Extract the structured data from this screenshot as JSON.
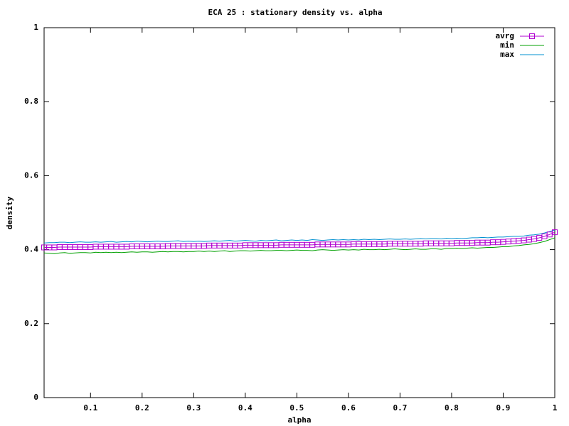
{
  "chart_data": {
    "type": "line",
    "title": "ECA 25 : stationary density vs. alpha",
    "x_label": "alpha",
    "y_label": "density",
    "xlim": [
      0.01,
      1
    ],
    "ylim": [
      0,
      1
    ],
    "xticks": [
      0.1,
      0.2,
      0.3,
      0.4,
      0.5,
      0.6,
      0.7,
      0.8,
      0.9,
      1
    ],
    "yticks": [
      0,
      0.2,
      0.4,
      0.6,
      0.8,
      1
    ],
    "legend": "top right",
    "grid": false,
    "x": [
      0.01,
      0.02,
      0.03,
      0.04,
      0.05,
      0.06,
      0.07,
      0.08,
      0.09,
      0.1,
      0.11,
      0.12,
      0.13,
      0.14,
      0.15,
      0.16,
      0.17,
      0.18,
      0.19,
      0.2,
      0.21,
      0.22,
      0.23,
      0.24,
      0.25,
      0.26,
      0.27,
      0.28,
      0.29,
      0.3,
      0.31,
      0.32,
      0.33,
      0.34,
      0.35,
      0.36,
      0.37,
      0.38,
      0.39,
      0.4,
      0.41,
      0.42,
      0.43,
      0.44,
      0.45,
      0.46,
      0.47,
      0.48,
      0.49,
      0.5,
      0.51,
      0.52,
      0.53,
      0.54,
      0.55,
      0.56,
      0.57,
      0.58,
      0.59,
      0.6,
      0.61,
      0.62,
      0.63,
      0.64,
      0.65,
      0.66,
      0.67,
      0.68,
      0.69,
      0.7,
      0.71,
      0.72,
      0.73,
      0.74,
      0.75,
      0.76,
      0.77,
      0.78,
      0.79,
      0.8,
      0.81,
      0.82,
      0.83,
      0.84,
      0.85,
      0.86,
      0.87,
      0.88,
      0.89,
      0.9,
      0.91,
      0.92,
      0.93,
      0.94,
      0.95,
      0.96,
      0.97,
      0.98,
      0.99,
      1
    ],
    "series": [
      {
        "name": "avrg",
        "color": "#b000d0",
        "marker": "square",
        "values": [
          0.406,
          0.406,
          0.406,
          0.407,
          0.407,
          0.407,
          0.407,
          0.407,
          0.407,
          0.407,
          0.408,
          0.408,
          0.408,
          0.408,
          0.408,
          0.408,
          0.408,
          0.409,
          0.409,
          0.409,
          0.409,
          0.409,
          0.409,
          0.409,
          0.41,
          0.41,
          0.41,
          0.41,
          0.41,
          0.41,
          0.41,
          0.41,
          0.411,
          0.411,
          0.411,
          0.411,
          0.411,
          0.411,
          0.411,
          0.412,
          0.412,
          0.412,
          0.412,
          0.412,
          0.412,
          0.412,
          0.413,
          0.413,
          0.413,
          0.413,
          0.413,
          0.413,
          0.413,
          0.414,
          0.414,
          0.414,
          0.414,
          0.414,
          0.414,
          0.414,
          0.415,
          0.415,
          0.415,
          0.415,
          0.415,
          0.415,
          0.415,
          0.416,
          0.416,
          0.416,
          0.416,
          0.416,
          0.416,
          0.416,
          0.417,
          0.417,
          0.417,
          0.417,
          0.417,
          0.417,
          0.418,
          0.418,
          0.418,
          0.418,
          0.419,
          0.419,
          0.419,
          0.42,
          0.42,
          0.421,
          0.422,
          0.423,
          0.424,
          0.425,
          0.427,
          0.429,
          0.432,
          0.436,
          0.441,
          0.447
        ]
      },
      {
        "name": "min",
        "color": "#00a000",
        "values": [
          0.391,
          0.39,
          0.389,
          0.391,
          0.392,
          0.39,
          0.391,
          0.392,
          0.392,
          0.391,
          0.393,
          0.392,
          0.393,
          0.392,
          0.393,
          0.392,
          0.393,
          0.394,
          0.393,
          0.394,
          0.394,
          0.393,
          0.394,
          0.395,
          0.394,
          0.395,
          0.395,
          0.394,
          0.395,
          0.395,
          0.396,
          0.395,
          0.396,
          0.395,
          0.396,
          0.397,
          0.395,
          0.396,
          0.397,
          0.397,
          0.396,
          0.397,
          0.398,
          0.397,
          0.397,
          0.398,
          0.398,
          0.397,
          0.398,
          0.399,
          0.398,
          0.398,
          0.397,
          0.399,
          0.4,
          0.399,
          0.398,
          0.399,
          0.4,
          0.399,
          0.4,
          0.399,
          0.401,
          0.4,
          0.4,
          0.401,
          0.4,
          0.401,
          0.402,
          0.401,
          0.4,
          0.401,
          0.402,
          0.401,
          0.401,
          0.402,
          0.402,
          0.401,
          0.403,
          0.403,
          0.404,
          0.403,
          0.404,
          0.405,
          0.404,
          0.405,
          0.406,
          0.406,
          0.407,
          0.408,
          0.408,
          0.41,
          0.411,
          0.413,
          0.414,
          0.416,
          0.419,
          0.422,
          0.427,
          0.432
        ]
      },
      {
        "name": "max",
        "color": "#0090d0",
        "values": [
          0.418,
          0.419,
          0.419,
          0.42,
          0.42,
          0.419,
          0.42,
          0.421,
          0.42,
          0.42,
          0.421,
          0.42,
          0.421,
          0.422,
          0.42,
          0.421,
          0.422,
          0.421,
          0.423,
          0.422,
          0.421,
          0.422,
          0.423,
          0.422,
          0.422,
          0.423,
          0.424,
          0.422,
          0.423,
          0.422,
          0.423,
          0.422,
          0.423,
          0.424,
          0.423,
          0.424,
          0.425,
          0.423,
          0.424,
          0.425,
          0.424,
          0.423,
          0.425,
          0.424,
          0.425,
          0.426,
          0.424,
          0.425,
          0.426,
          0.425,
          0.426,
          0.425,
          0.427,
          0.426,
          0.425,
          0.426,
          0.427,
          0.426,
          0.427,
          0.426,
          0.427,
          0.426,
          0.428,
          0.427,
          0.428,
          0.427,
          0.428,
          0.429,
          0.428,
          0.428,
          0.429,
          0.428,
          0.429,
          0.43,
          0.429,
          0.43,
          0.43,
          0.429,
          0.431,
          0.43,
          0.431,
          0.43,
          0.431,
          0.432,
          0.432,
          0.433,
          0.432,
          0.433,
          0.434,
          0.434,
          0.435,
          0.436,
          0.436,
          0.437,
          0.439,
          0.44,
          0.442,
          0.445,
          0.449,
          0.453
        ]
      }
    ]
  }
}
